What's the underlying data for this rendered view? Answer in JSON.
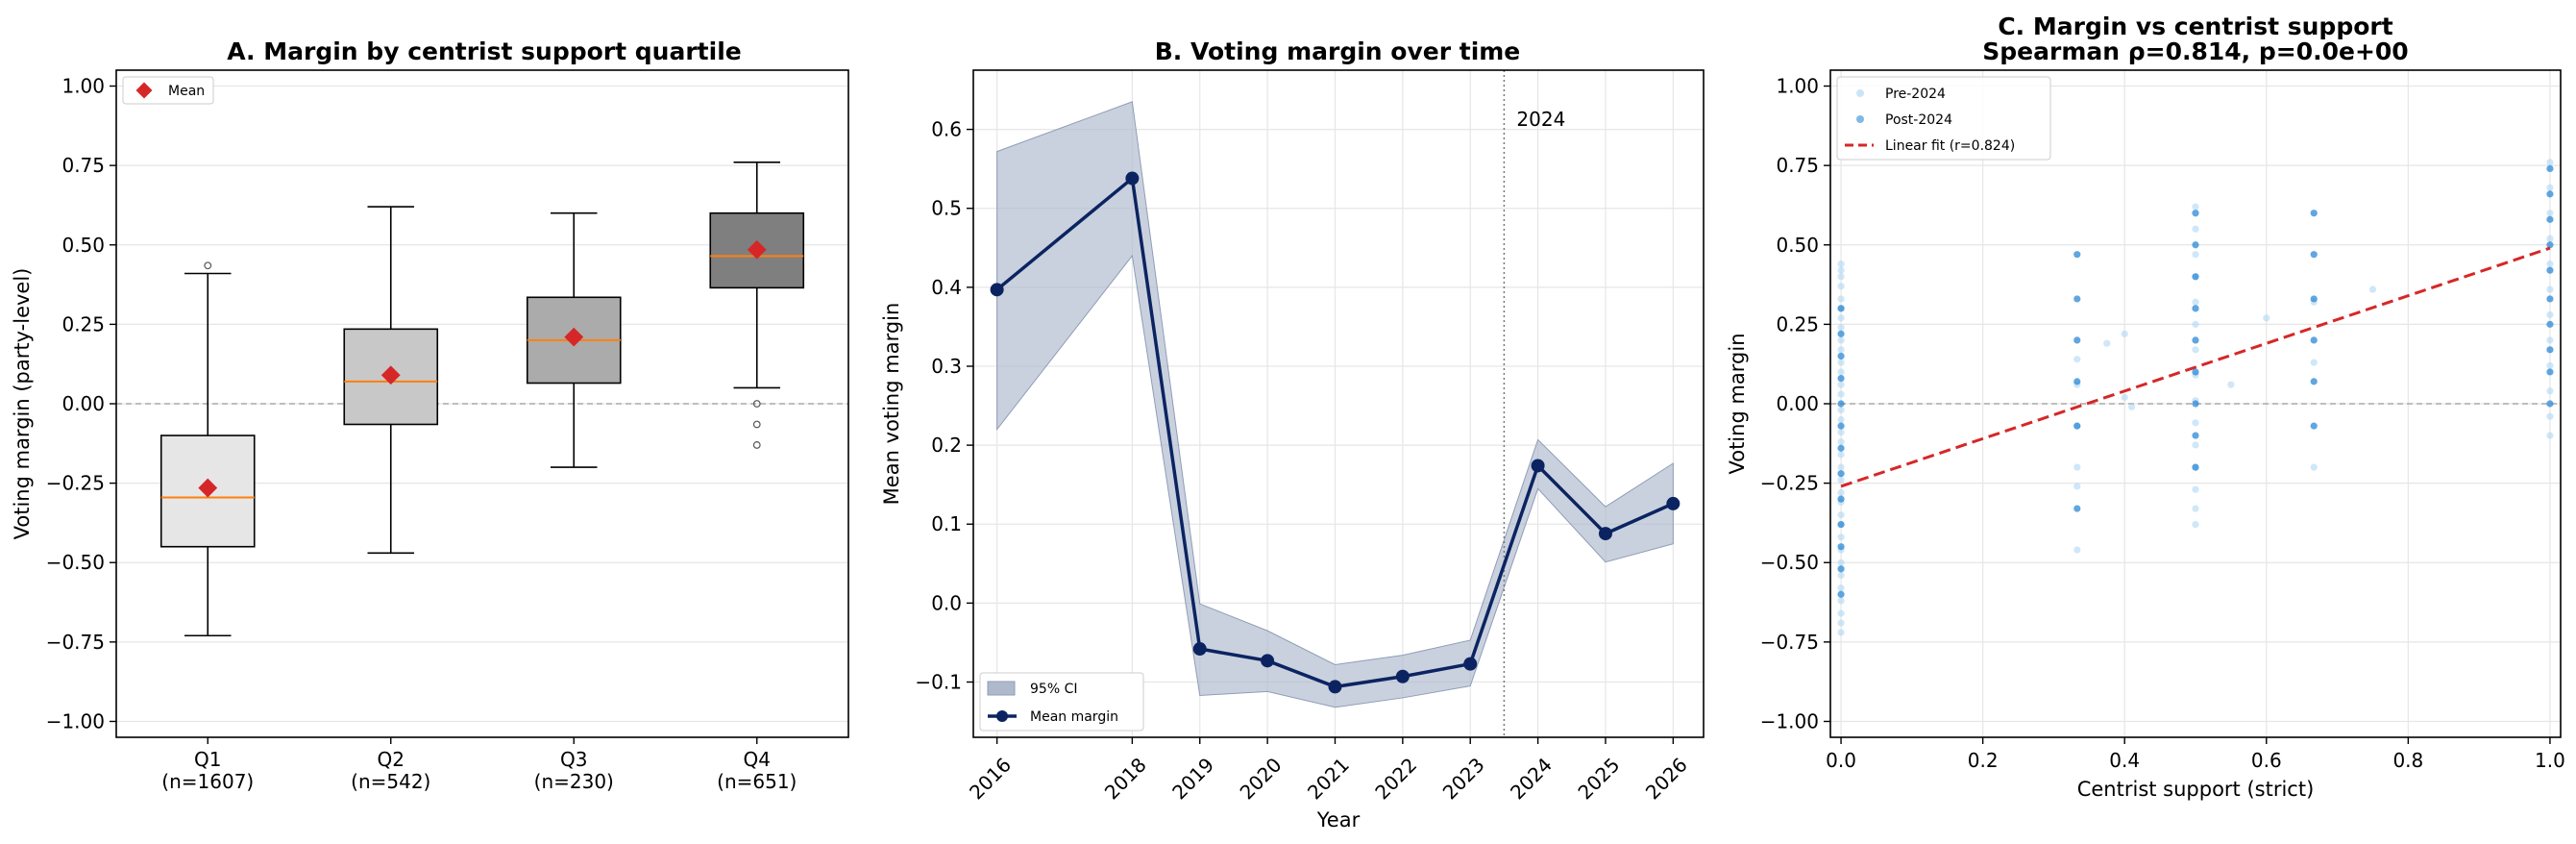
{
  "chart_data": [
    {
      "type": "box",
      "title": "A. Margin by centrist support quartile",
      "xlabel": "",
      "ylabel": "Voting margin (party-level)",
      "ylim": [
        -1.05,
        1.05
      ],
      "yticks": [
        "1.00",
        "0.75",
        "0.50",
        "0.25",
        "0.00",
        "−0.25",
        "−0.50",
        "−0.75",
        "−1.00"
      ],
      "ytick_values": [
        1.0,
        0.75,
        0.5,
        0.25,
        0.0,
        -0.25,
        -0.5,
        -0.75,
        -1.0
      ],
      "grid": true,
      "legend": {
        "position": "top-left",
        "entries": [
          {
            "label": "Mean",
            "color": "#d62728"
          }
        ]
      },
      "reference_line_y": 0,
      "groups": [
        {
          "label": "Q1",
          "n_label": "(n=1607)",
          "whisker_low": -0.73,
          "q1": -0.45,
          "median": -0.295,
          "q3": -0.1,
          "whisker_high": 0.41,
          "mean": -0.265,
          "outliers": [
            0.435
          ],
          "fill": "#e6e6e6"
        },
        {
          "label": "Q2",
          "n_label": "(n=542)",
          "whisker_low": -0.47,
          "q1": -0.065,
          "median": 0.07,
          "q3": 0.235,
          "whisker_high": 0.62,
          "mean": 0.09,
          "outliers": [],
          "fill": "#c8c8c8"
        },
        {
          "label": "Q3",
          "n_label": "(n=230)",
          "whisker_low": -0.2,
          "q1": 0.065,
          "median": 0.2,
          "q3": 0.335,
          "whisker_high": 0.6,
          "mean": 0.21,
          "outliers": [],
          "fill": "#ababab"
        },
        {
          "label": "Q4",
          "n_label": "(n=651)",
          "whisker_low": 0.05,
          "q1": 0.365,
          "median": 0.465,
          "q3": 0.6,
          "whisker_high": 0.76,
          "mean": 0.485,
          "outliers": [
            0.0,
            -0.065,
            -0.13
          ],
          "fill": "#7f7f7f"
        }
      ],
      "colors": {
        "median": "#ff7f0e",
        "mean": "#d62728"
      }
    },
    {
      "type": "line",
      "title": "B. Voting margin over time",
      "xlabel": "Year",
      "ylabel": "Mean voting margin",
      "xlim": [
        2015.65,
        2026.45
      ],
      "ylim": [
        -0.17,
        0.675
      ],
      "yticks": [
        "0.6",
        "0.5",
        "0.4",
        "0.3",
        "0.2",
        "0.1",
        "0.0",
        "−0.1"
      ],
      "ytick_values": [
        0.6,
        0.5,
        0.4,
        0.3,
        0.2,
        0.1,
        0.0,
        -0.1
      ],
      "x": [
        2016,
        2018,
        2019,
        2020,
        2021,
        2022,
        2023,
        2024,
        2025,
        2026
      ],
      "x_labels": [
        "2016",
        "2018",
        "2019",
        "2020",
        "2021",
        "2022",
        "2023",
        "2024",
        "2025",
        "2026"
      ],
      "grid": true,
      "series": [
        {
          "name": "Mean margin",
          "values": [
            0.397,
            0.538,
            -0.058,
            -0.073,
            -0.106,
            -0.093,
            -0.077,
            0.174,
            0.088,
            0.126
          ],
          "color": "#0b2461"
        }
      ],
      "ci": {
        "name": "95% CI",
        "lower": [
          0.22,
          0.44,
          -0.117,
          -0.112,
          -0.132,
          -0.12,
          -0.105,
          0.145,
          0.052,
          0.075
        ],
        "upper": [
          0.572,
          0.635,
          -0.001,
          -0.035,
          -0.078,
          -0.066,
          -0.047,
          0.207,
          0.122,
          0.177
        ],
        "color": "#aeb9cc"
      },
      "vline": {
        "x": 2023.5,
        "label": "2024"
      },
      "legend": {
        "position": "bottom-left"
      }
    },
    {
      "type": "scatter",
      "title": "C. Margin vs centrist support",
      "subtitle": "Spearman ρ=0.814, p=0.0e+00",
      "xlabel": "Centrist support (strict)",
      "ylabel": "Voting margin",
      "xlim": [
        -0.015,
        1.015
      ],
      "ylim": [
        -1.05,
        1.05
      ],
      "xticks": [
        "0.0",
        "0.2",
        "0.4",
        "0.6",
        "0.8",
        "1.0"
      ],
      "xtick_values": [
        0.0,
        0.2,
        0.4,
        0.6,
        0.8,
        1.0
      ],
      "yticks": [
        "1.00",
        "0.75",
        "0.50",
        "0.25",
        "0.00",
        "−0.25",
        "−0.50",
        "−0.75",
        "−1.00"
      ],
      "ytick_values": [
        1.0,
        0.75,
        0.5,
        0.25,
        0.0,
        -0.25,
        -0.5,
        -0.75,
        -1.0
      ],
      "grid": true,
      "reference_line_y": 0,
      "legend": {
        "position": "top-left"
      },
      "series": [
        {
          "name": "Pre-2024",
          "color": "#a8d4f2",
          "points": [
            [
              0,
              0.44
            ],
            [
              0,
              0.42
            ],
            [
              0,
              0.4
            ],
            [
              0,
              0.37
            ],
            [
              0,
              0.33
            ],
            [
              0,
              0.3
            ],
            [
              0,
              0.27
            ],
            [
              0,
              0.24
            ],
            [
              0,
              0.2
            ],
            [
              0,
              0.17
            ],
            [
              0,
              0.13
            ],
            [
              0,
              0.1
            ],
            [
              0,
              0.06
            ],
            [
              0,
              0.03
            ],
            [
              0,
              -0.02
            ],
            [
              0,
              -0.05
            ],
            [
              0,
              -0.09
            ],
            [
              0,
              -0.12
            ],
            [
              0,
              -0.16
            ],
            [
              0,
              -0.2
            ],
            [
              0,
              -0.24
            ],
            [
              0,
              -0.28
            ],
            [
              0,
              -0.31
            ],
            [
              0,
              -0.35
            ],
            [
              0,
              -0.38
            ],
            [
              0,
              -0.42
            ],
            [
              0,
              -0.46
            ],
            [
              0,
              -0.5
            ],
            [
              0,
              -0.54
            ],
            [
              0,
              -0.58
            ],
            [
              0,
              -0.62
            ],
            [
              0,
              -0.66
            ],
            [
              0,
              -0.69
            ],
            [
              0,
              -0.72
            ],
            [
              0.333,
              0.14
            ],
            [
              0.333,
              0.06
            ],
            [
              0.333,
              -0.07
            ],
            [
              0.333,
              -0.2
            ],
            [
              0.333,
              -0.26
            ],
            [
              0.333,
              -0.46
            ],
            [
              0.375,
              0.19
            ],
            [
              0.4,
              0.22
            ],
            [
              0.4,
              0.02
            ],
            [
              0.41,
              -0.01
            ],
            [
              0.55,
              0.06
            ],
            [
              0.6,
              0.27
            ],
            [
              0.75,
              0.36
            ],
            [
              0.5,
              0.62
            ],
            [
              0.5,
              0.55
            ],
            [
              0.5,
              0.47
            ],
            [
              0.5,
              0.4
            ],
            [
              0.5,
              0.32
            ],
            [
              0.5,
              0.25
            ],
            [
              0.5,
              0.17
            ],
            [
              0.5,
              0.09
            ],
            [
              0.5,
              0.01
            ],
            [
              0.5,
              -0.06
            ],
            [
              0.5,
              -0.13
            ],
            [
              0.5,
              -0.2
            ],
            [
              0.5,
              -0.27
            ],
            [
              0.5,
              -0.33
            ],
            [
              0.5,
              -0.38
            ],
            [
              0.667,
              0.32
            ],
            [
              0.667,
              0.13
            ],
            [
              0.667,
              -0.2
            ],
            [
              1.0,
              0.76
            ],
            [
              1.0,
              0.68
            ],
            [
              1.0,
              0.6
            ],
            [
              1.0,
              0.52
            ],
            [
              1.0,
              0.44
            ],
            [
              1.0,
              0.36
            ],
            [
              1.0,
              0.28
            ],
            [
              1.0,
              0.2
            ],
            [
              1.0,
              0.12
            ],
            [
              1.0,
              0.04
            ],
            [
              1.0,
              -0.04
            ],
            [
              1.0,
              -0.1
            ]
          ]
        },
        {
          "name": "Post-2024",
          "color": "#2b88d6",
          "points": [
            [
              0,
              0.3
            ],
            [
              0,
              0.22
            ],
            [
              0,
              0.15
            ],
            [
              0,
              0.08
            ],
            [
              0,
              0.0
            ],
            [
              0,
              -0.07
            ],
            [
              0,
              -0.14
            ],
            [
              0,
              -0.22
            ],
            [
              0,
              -0.3
            ],
            [
              0,
              -0.38
            ],
            [
              0,
              -0.45
            ],
            [
              0,
              -0.52
            ],
            [
              0,
              -0.6
            ],
            [
              0.333,
              0.47
            ],
            [
              0.333,
              0.33
            ],
            [
              0.333,
              0.2
            ],
            [
              0.333,
              0.07
            ],
            [
              0.333,
              -0.07
            ],
            [
              0.333,
              -0.33
            ],
            [
              0.5,
              0.6
            ],
            [
              0.5,
              0.5
            ],
            [
              0.5,
              0.4
            ],
            [
              0.5,
              0.3
            ],
            [
              0.5,
              0.2
            ],
            [
              0.5,
              0.1
            ],
            [
              0.5,
              0.0
            ],
            [
              0.5,
              -0.1
            ],
            [
              0.5,
              -0.2
            ],
            [
              0.667,
              0.6
            ],
            [
              0.667,
              0.47
            ],
            [
              0.667,
              0.33
            ],
            [
              0.667,
              0.2
            ],
            [
              0.667,
              0.07
            ],
            [
              0.667,
              -0.07
            ],
            [
              1.0,
              0.74
            ],
            [
              1.0,
              0.66
            ],
            [
              1.0,
              0.58
            ],
            [
              1.0,
              0.5
            ],
            [
              1.0,
              0.42
            ],
            [
              1.0,
              0.33
            ],
            [
              1.0,
              0.25
            ],
            [
              1.0,
              0.17
            ],
            [
              1.0,
              0.1
            ],
            [
              1.0,
              0.0
            ]
          ]
        }
      ],
      "fit": {
        "name": "Linear fit (r=0.824)",
        "color": "#d62728",
        "x": [
          0.0,
          1.0
        ],
        "y": [
          -0.26,
          0.49
        ]
      }
    }
  ]
}
